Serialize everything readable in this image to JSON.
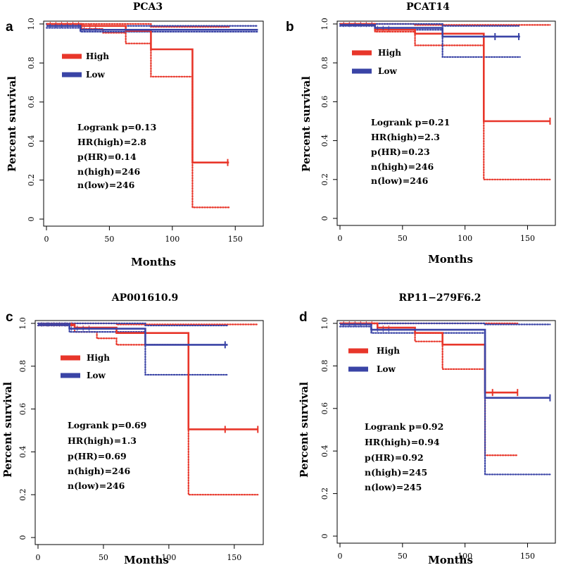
{
  "colors": {
    "high": "#e8362a",
    "low": "#3a44a6",
    "axis": "#000000"
  },
  "chart_data": [
    {
      "type": "line",
      "label": "a",
      "title": "PCA3",
      "xlabel": "Months",
      "ylabel": "Percent survival",
      "xlim": [
        0,
        170
      ],
      "ylim": [
        0,
        1
      ],
      "xticks": [
        "0",
        "50",
        "100",
        "150"
      ],
      "yticks": [
        "0",
        "0.2",
        "0.4",
        "0.6",
        "0.8",
        "1.0"
      ],
      "legend": [
        "High",
        "Low"
      ],
      "stats": [
        "Logrank p=0.13",
        "HR(high)=2.8",
        "p(HR)=0.14",
        "n(high)=246",
        "n(low)=246"
      ],
      "series": [
        {
          "name": "High",
          "end": 145,
          "steps": [
            [
              0,
              1.0
            ],
            [
              28,
              0.99
            ],
            [
              63,
              0.965
            ],
            [
              83,
              0.87
            ],
            [
              116,
              0.29
            ]
          ],
          "upper": [
            [
              0,
              1.0
            ],
            [
              83,
              0.985
            ]
          ],
          "lower": [
            [
              0,
              1.0
            ],
            [
              28,
              0.975
            ],
            [
              45,
              0.955
            ],
            [
              63,
              0.9
            ],
            [
              83,
              0.73
            ],
            [
              116,
              0.06
            ]
          ],
          "censor": [
            144
          ]
        },
        {
          "name": "Low",
          "end": 168,
          "steps": [
            [
              0,
              0.99
            ],
            [
              27,
              0.97
            ]
          ],
          "upper": [
            [
              0,
              1.0
            ],
            [
              27,
              0.99
            ]
          ],
          "lower": [
            [
              0,
              0.98
            ],
            [
              27,
              0.96
            ]
          ],
          "censor": []
        }
      ]
    },
    {
      "type": "line",
      "label": "b",
      "title": "PCAT14",
      "xlabel": "Months",
      "ylabel": "Percent survival",
      "xlim": [
        0,
        170
      ],
      "ylim": [
        0,
        1
      ],
      "xticks": [
        "0",
        "50",
        "100",
        "150"
      ],
      "yticks": [
        "0",
        "0.2",
        "0.4",
        "0.6",
        "0.8",
        "1.0"
      ],
      "legend": [
        "High",
        "Low"
      ],
      "stats": [
        "Logrank p=0.21",
        "HR(high)=2.3",
        "p(HR)=0.23",
        "n(high)=246",
        "n(low)=246"
      ],
      "series": [
        {
          "name": "High",
          "end": 168,
          "steps": [
            [
              0,
              1.0
            ],
            [
              28,
              0.97
            ],
            [
              60,
              0.95
            ],
            [
              115,
              0.5
            ]
          ],
          "upper": [
            [
              0,
              1.0
            ],
            [
              60,
              0.995
            ]
          ],
          "lower": [
            [
              0,
              1.0
            ],
            [
              28,
              0.96
            ],
            [
              60,
              0.89
            ],
            [
              115,
              0.2
            ]
          ],
          "censor": [
            168
          ]
        },
        {
          "name": "Low",
          "end": 144,
          "steps": [
            [
              0,
              0.995
            ],
            [
              28,
              0.98
            ],
            [
              82,
              0.935
            ]
          ],
          "upper": [
            [
              0,
              1.0
            ],
            [
              82,
              0.99
            ]
          ],
          "lower": [
            [
              0,
              0.99
            ],
            [
              28,
              0.97
            ],
            [
              82,
              0.83
            ]
          ],
          "censor": [
            124,
            143
          ]
        }
      ]
    },
    {
      "type": "line",
      "label": "c",
      "title": "AP001610.9",
      "xlabel": "Months",
      "ylabel": "Percent survival",
      "xlim": [
        0,
        170
      ],
      "ylim": [
        0,
        1
      ],
      "xticks": [
        "0",
        "50",
        "100",
        "150"
      ],
      "yticks": [
        "0",
        "0.2",
        "0.4",
        "0.6",
        "0.8",
        "1.0"
      ],
      "legend": [
        "High",
        "Low"
      ],
      "stats": [
        "Logrank p=0.69",
        "HR(high)=1.3",
        "p(HR)=0.69",
        "n(high)=246",
        "n(low)=246"
      ],
      "series": [
        {
          "name": "High",
          "end": 168,
          "steps": [
            [
              0,
              0.995
            ],
            [
              28,
              0.98
            ],
            [
              60,
              0.955
            ],
            [
              115,
              0.505
            ]
          ],
          "upper": [
            [
              0,
              1.0
            ],
            [
              60,
              0.995
            ]
          ],
          "lower": [
            [
              0,
              0.99
            ],
            [
              28,
              0.96
            ],
            [
              45,
              0.93
            ],
            [
              60,
              0.9
            ],
            [
              115,
              0.2
            ]
          ],
          "censor": [
            143,
            168
          ]
        },
        {
          "name": "Low",
          "end": 145,
          "steps": [
            [
              0,
              0.995
            ],
            [
              24,
              0.975
            ],
            [
              82,
              0.9
            ]
          ],
          "upper": [
            [
              0,
              1.0
            ],
            [
              82,
              0.99
            ]
          ],
          "lower": [
            [
              0,
              0.99
            ],
            [
              24,
              0.96
            ],
            [
              82,
              0.76
            ]
          ],
          "censor": [
            143
          ]
        }
      ]
    },
    {
      "type": "line",
      "label": "d",
      "title": "RP11−279F6.2",
      "xlabel": "Months",
      "ylabel": "Percent survival",
      "xlim": [
        0,
        170
      ],
      "ylim": [
        0,
        1
      ],
      "xticks": [
        "0",
        "50",
        "100",
        "150"
      ],
      "yticks": [
        "0",
        "0.2",
        "0.4",
        "0.6",
        "0.8",
        "1.0"
      ],
      "legend": [
        "High",
        "Low"
      ],
      "stats": [
        "Logrank p=0.92",
        "HR(high)=0.94",
        "p(HR)=0.92",
        "n(high)=245",
        "n(low)=245"
      ],
      "series": [
        {
          "name": "High",
          "end": 142,
          "steps": [
            [
              0,
              1.0
            ],
            [
              30,
              0.98
            ],
            [
              60,
              0.955
            ],
            [
              82,
              0.9
            ],
            [
              116,
              0.675
            ]
          ],
          "upper": [
            [
              0,
              1.0
            ]
          ],
          "lower": [
            [
              0,
              1.0
            ],
            [
              30,
              0.97
            ],
            [
              60,
              0.915
            ],
            [
              82,
              0.785
            ],
            [
              116,
              0.38
            ]
          ],
          "censor": [
            122,
            142
          ]
        },
        {
          "name": "Low",
          "end": 168,
          "steps": [
            [
              0,
              0.995
            ],
            [
              25,
              0.97
            ],
            [
              116,
              0.65
            ]
          ],
          "upper": [
            [
              0,
              1.0
            ],
            [
              116,
              0.995
            ]
          ],
          "lower": [
            [
              0,
              0.985
            ],
            [
              25,
              0.955
            ],
            [
              116,
              0.29
            ]
          ],
          "censor": [
            168
          ]
        }
      ]
    }
  ]
}
